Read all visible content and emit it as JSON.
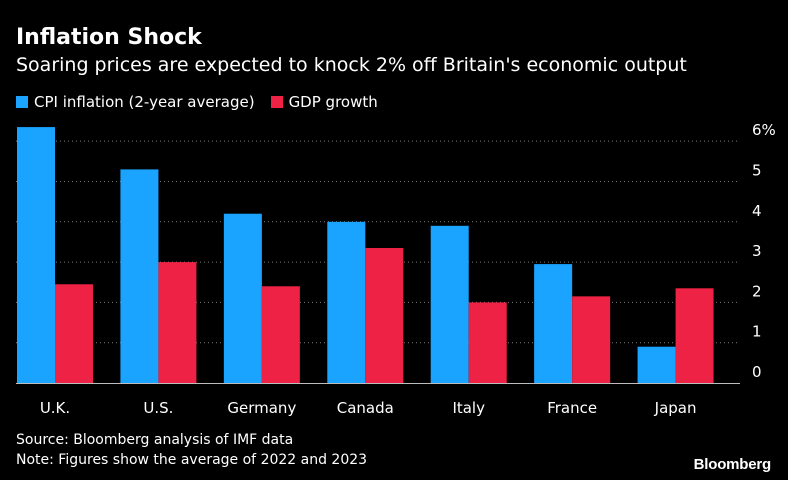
{
  "chart_data": {
    "type": "bar",
    "title": "Inflation Shock",
    "subtitle": "Soaring prices are expected to knock 2% off Britain's economic output",
    "categories": [
      "U.K.",
      "U.S.",
      "Germany",
      "Canada",
      "Italy",
      "France",
      "Japan"
    ],
    "series": [
      {
        "name": "CPI inflation (2-year average)",
        "color": "#1aa3ff",
        "values": [
          6.35,
          5.3,
          4.2,
          4.0,
          3.9,
          2.95,
          0.9
        ]
      },
      {
        "name": "GDP growth",
        "color": "#ee2244",
        "values": [
          2.45,
          3.0,
          2.4,
          3.35,
          2.0,
          2.15,
          2.35
        ]
      }
    ],
    "yticks": [
      0,
      1,
      2,
      3,
      4,
      5,
      6
    ],
    "ytick_labels": [
      "0",
      "1",
      "2",
      "3",
      "4",
      "5",
      "6%"
    ],
    "ylim": [
      0,
      6.6
    ],
    "xlabel": "",
    "ylabel": "",
    "legend_position": "top-left",
    "grid": true
  },
  "footer": {
    "source": "Source: Bloomberg analysis of IMF data",
    "note": "Note: Figures show the average of 2022 and 2023"
  },
  "brand": "Bloomberg",
  "colors": {
    "background": "#000000",
    "text": "#ffffff",
    "grid": "#7a7a7a"
  }
}
